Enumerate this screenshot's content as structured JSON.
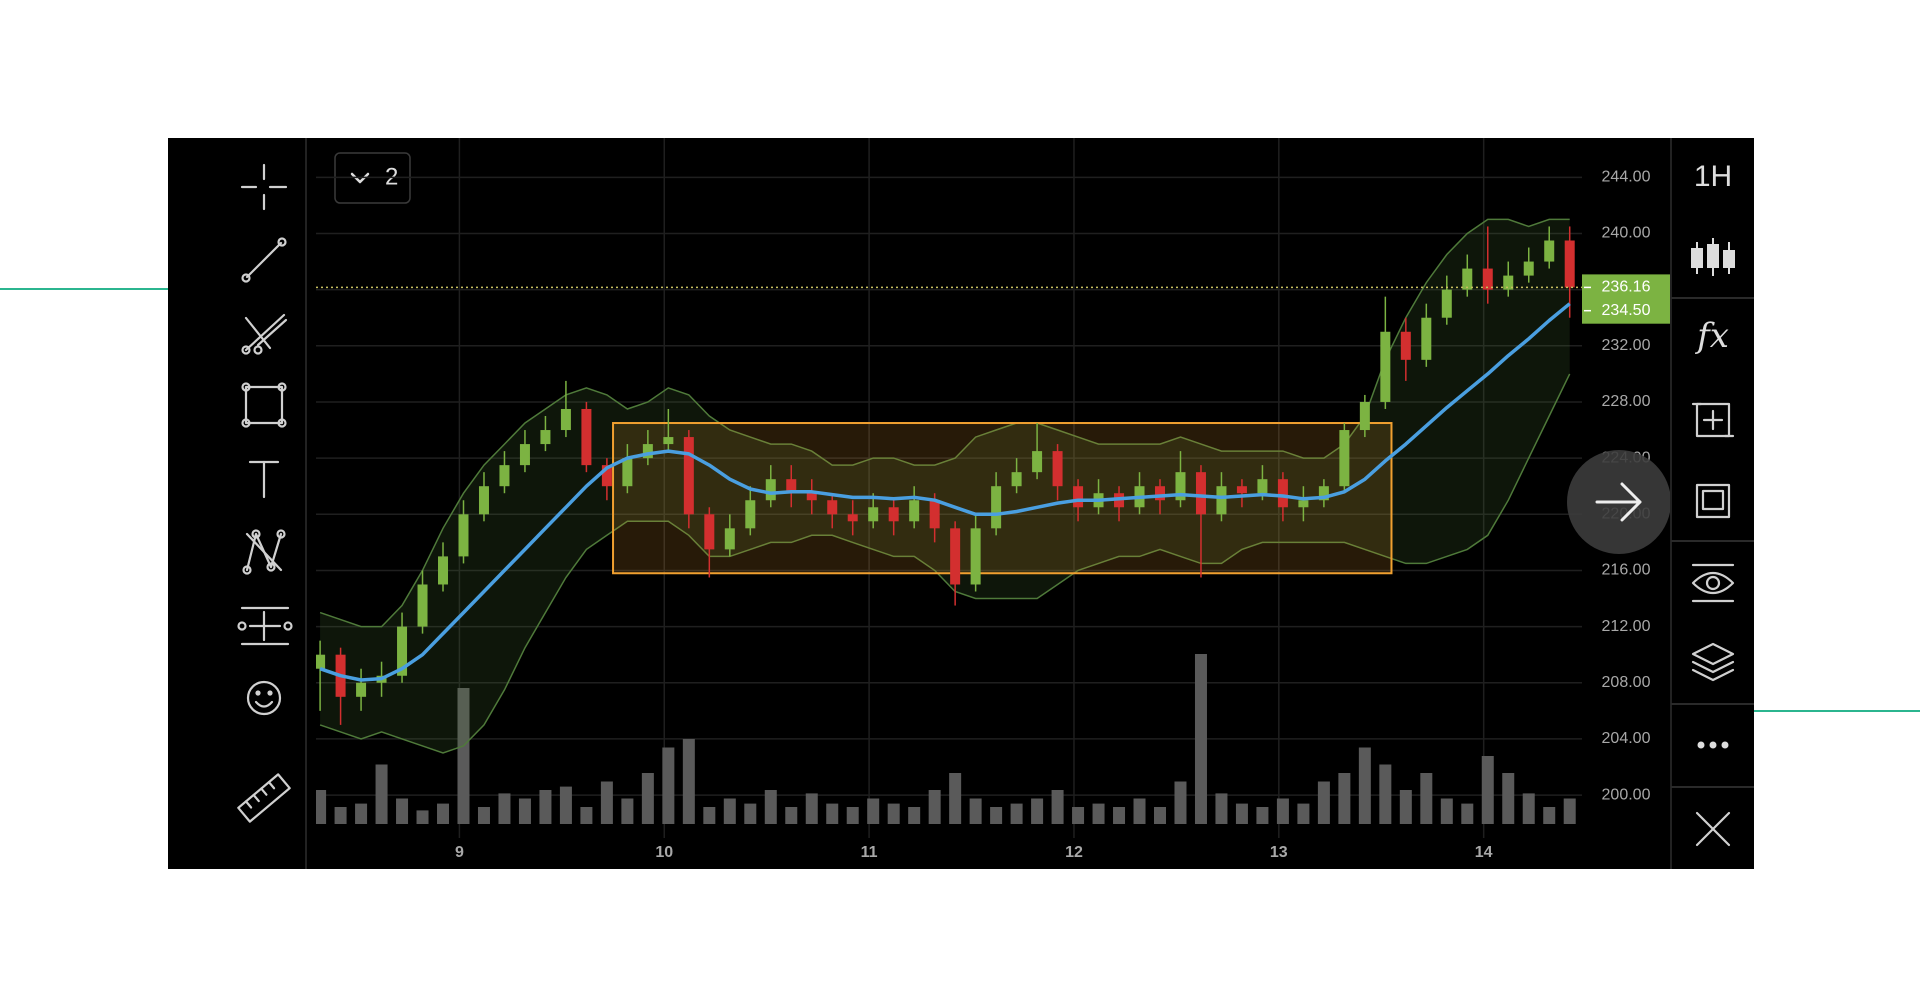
{
  "toolbar": {
    "layout_button": "2"
  },
  "right_toolbar": {
    "interval": "1H",
    "indicators": "fx"
  },
  "chart_data": {
    "type": "candlestick",
    "xlim": [
      8.3,
      14.48
    ],
    "xticks": [
      9,
      10,
      11,
      12,
      13,
      14
    ],
    "ylim": [
      197.3,
      246.8
    ],
    "yticks": [
      {
        "value": 200,
        "label": "200.00"
      },
      {
        "value": 204,
        "label": "204.00"
      },
      {
        "value": 208,
        "label": "208.00"
      },
      {
        "value": 212,
        "label": "212.00"
      },
      {
        "value": 216,
        "label": "216.00"
      },
      {
        "value": 220,
        "label": "220.00"
      },
      {
        "value": 224,
        "label": "224.00"
      },
      {
        "value": 228,
        "label": "228.00"
      },
      {
        "value": 232,
        "label": "232.00"
      },
      {
        "value": 236,
        "label": "236.00"
      },
      {
        "value": 240,
        "label": "240.00"
      },
      {
        "value": 244,
        "label": "244.00"
      }
    ],
    "grid": true,
    "up_color": "#7cb342",
    "down_color": "#d32f2f",
    "x": [
      8.32,
      8.42,
      8.52,
      8.62,
      8.72,
      8.82,
      8.92,
      9.02,
      9.12,
      9.22,
      9.32,
      9.42,
      9.52,
      9.62,
      9.72,
      9.82,
      9.92,
      10.02,
      10.12,
      10.22,
      10.32,
      10.42,
      10.52,
      10.62,
      10.72,
      10.82,
      10.92,
      11.02,
      11.12,
      11.22,
      11.32,
      11.42,
      11.52,
      11.62,
      11.72,
      11.82,
      11.92,
      12.02,
      12.12,
      12.22,
      12.32,
      12.42,
      12.52,
      12.62,
      12.72,
      12.82,
      12.92,
      13.02,
      13.12,
      13.22,
      13.32,
      13.42,
      13.52,
      13.62,
      13.72,
      13.82,
      13.92,
      14.02,
      14.12,
      14.22,
      14.32,
      14.42
    ],
    "open": [
      209,
      210,
      207,
      208,
      208.5,
      212,
      215,
      217,
      220,
      222,
      223.5,
      225,
      226,
      227.5,
      223.5,
      222,
      224,
      225,
      225.5,
      220,
      217.5,
      219,
      221,
      222.5,
      221.5,
      221,
      220,
      219.5,
      220.5,
      219.5,
      221,
      219,
      215,
      219,
      222,
      223,
      224.5,
      222,
      220.5,
      221.5,
      220.5,
      222,
      221,
      223,
      220,
      222,
      221.5,
      222.5,
      220.5,
      221,
      222,
      226,
      228,
      233,
      231,
      234,
      236,
      237.5,
      236,
      237,
      238,
      239.5
    ],
    "high": [
      211,
      210.5,
      209,
      209.5,
      213,
      216,
      218,
      221,
      223,
      224.5,
      226,
      227,
      229.5,
      228,
      224,
      225,
      226,
      227.5,
      226,
      220.5,
      220,
      222,
      223.5,
      223.5,
      222.5,
      221.5,
      221,
      221.5,
      221,
      222,
      221.5,
      219.5,
      220,
      223,
      224,
      226.5,
      225,
      222.5,
      222.5,
      222,
      223,
      222.5,
      224.5,
      223.5,
      223,
      222.5,
      223.5,
      223,
      222,
      222.5,
      226.5,
      228.5,
      235.5,
      234,
      235,
      237,
      238.5,
      240.5,
      238,
      239,
      240.5,
      240.5
    ],
    "low": [
      206,
      205,
      206,
      207,
      208,
      211.5,
      214.5,
      216.5,
      219.5,
      221.5,
      223,
      224.5,
      225.5,
      223,
      221,
      221.5,
      223.5,
      224.5,
      219,
      215.5,
      217,
      218.5,
      220.5,
      220.5,
      220,
      219,
      218.5,
      219,
      218.5,
      219,
      218,
      213.5,
      214.5,
      218.5,
      221.5,
      222.5,
      221,
      219.5,
      220,
      219.5,
      220,
      220,
      220.5,
      215.5,
      219.5,
      220.5,
      221,
      219.5,
      219.5,
      220.5,
      221.5,
      225.5,
      227.5,
      229.5,
      230.5,
      233.5,
      235.5,
      235,
      235.5,
      236.5,
      237.5,
      234
    ],
    "close": [
      210,
      207,
      208,
      208.5,
      212,
      215,
      217,
      220,
      222,
      223.5,
      225,
      226,
      227.5,
      223.5,
      222,
      224,
      225,
      225.5,
      220,
      217.5,
      219,
      221,
      222.5,
      221.5,
      221,
      220,
      219.5,
      220.5,
      219.5,
      221,
      219,
      215,
      219,
      222,
      223,
      224.5,
      222,
      220.5,
      221.5,
      220.5,
      222,
      221,
      223,
      220,
      222,
      221.5,
      222.5,
      220.5,
      221,
      222,
      226,
      228,
      233,
      231,
      234,
      236,
      237.5,
      236,
      237,
      238,
      239.5,
      236.16
    ],
    "volume": [
      20,
      10,
      12,
      35,
      15,
      8,
      12,
      80,
      10,
      18,
      15,
      20,
      22,
      10,
      25,
      15,
      30,
      45,
      50,
      10,
      15,
      12,
      20,
      10,
      18,
      12,
      10,
      15,
      12,
      10,
      20,
      30,
      15,
      10,
      12,
      15,
      20,
      10,
      12,
      10,
      15,
      10,
      25,
      100,
      18,
      12,
      10,
      15,
      12,
      25,
      30,
      45,
      35,
      20,
      30,
      15,
      12,
      40,
      30,
      18,
      10,
      15
    ],
    "volume_color": "#5a5a5a",
    "moving_average": {
      "color": "#4a9fe0",
      "values": [
        209,
        208.5,
        208.2,
        208.3,
        209,
        210,
        211.5,
        213,
        214.5,
        216,
        217.5,
        219,
        220.5,
        222,
        223.3,
        224,
        224.3,
        224.5,
        224.3,
        223.5,
        222.5,
        221.8,
        221.5,
        221.6,
        221.6,
        221.4,
        221.2,
        221.2,
        221.1,
        221.2,
        221,
        220.5,
        220,
        220,
        220.2,
        220.5,
        220.8,
        221,
        221,
        221.1,
        221.2,
        221.3,
        221.4,
        221.3,
        221.2,
        221.3,
        221.4,
        221.3,
        221.1,
        221.2,
        221.6,
        222.5,
        223.8,
        225,
        226.3,
        227.6,
        228.8,
        230,
        231.3,
        232.5,
        233.8,
        235
      ]
    },
    "bollinger": {
      "color": "#4f7a3a",
      "upper": [
        213,
        212.5,
        212,
        212,
        213.5,
        216,
        219,
        221.5,
        223.5,
        225,
        226.5,
        227.5,
        228.5,
        229,
        228.5,
        227.5,
        228,
        229,
        228.5,
        227,
        226,
        225.5,
        225,
        225,
        224.5,
        223.5,
        223.5,
        224,
        224,
        223.5,
        223.5,
        224,
        225.5,
        226,
        226.5,
        226.5,
        226,
        225.5,
        225,
        225,
        225,
        225,
        225.5,
        225,
        224.5,
        224.5,
        224.5,
        224.5,
        224,
        224,
        225,
        227,
        231,
        234,
        236.5,
        238.5,
        240,
        241,
        241,
        240.5,
        241,
        241
      ],
      "lower": [
        205,
        204.5,
        204,
        204.5,
        204,
        203.5,
        203,
        203.5,
        205,
        207.5,
        210.5,
        213,
        215.5,
        217.5,
        218.5,
        219.5,
        219.5,
        219.5,
        218.5,
        217,
        217,
        217.5,
        218,
        218,
        218.5,
        218.5,
        218,
        217.5,
        217,
        217,
        216,
        214.5,
        214,
        214,
        214,
        214,
        215,
        216,
        216.5,
        217,
        217,
        217.5,
        217,
        216.5,
        216.5,
        217.5,
        218,
        218,
        218,
        218,
        218,
        217.5,
        217,
        216.5,
        216.5,
        217,
        217.5,
        218.5,
        221,
        224,
        227,
        230
      ]
    },
    "rectangle": {
      "color": "#f0a030",
      "x": [
        9.75,
        13.55
      ],
      "y": [
        215.8,
        226.5
      ]
    },
    "price_line": {
      "value": 236.16,
      "color": "#c8c060"
    },
    "price_tags": [
      {
        "value": 236.16,
        "label": "236.16"
      },
      {
        "value": 234.5,
        "label": "234.50"
      }
    ],
    "price_tag_color": "#7cb342"
  }
}
